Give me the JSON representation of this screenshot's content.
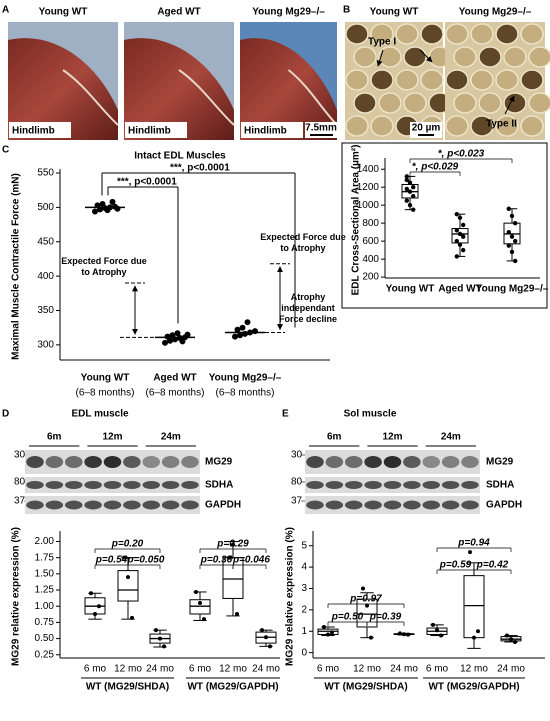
{
  "figure": {
    "panel_A": {
      "letter": "A",
      "photos": [
        {
          "title": "Young WT",
          "caption": "Hindlimb"
        },
        {
          "title": "Aged WT",
          "caption": "Hindlimb"
        },
        {
          "title": "Young Mg29–/–",
          "caption": "Hindlimb"
        }
      ],
      "scale_bar": "7.5mm"
    },
    "panel_B": {
      "letter": "B",
      "micrographs": [
        {
          "title": "Young WT",
          "label": "Type I"
        },
        {
          "title": "Young Mg29–/–",
          "label": "Type II"
        }
      ],
      "scale_bar": "20 µm"
    },
    "panel_C": {
      "letter": "C"
    },
    "panel_D": {
      "letter": "D",
      "title": "EDL muscle",
      "timepoints": [
        "6m",
        "12m",
        "24m"
      ],
      "blots": [
        {
          "marker": "30",
          "name": "MG29"
        },
        {
          "marker": "80",
          "name": "SDHA"
        },
        {
          "marker": "37",
          "name": "GAPDH"
        }
      ]
    },
    "panel_E": {
      "letter": "E",
      "title": "Sol muscle",
      "timepoints": [
        "6m",
        "12m",
        "24m"
      ],
      "blots": [
        {
          "marker": "30",
          "name": "MG29"
        },
        {
          "marker": "80",
          "name": "SDHA"
        },
        {
          "marker": "37",
          "name": "GAPDH"
        }
      ]
    }
  },
  "chart_data": [
    {
      "type": "dot",
      "title": "Intact EDL Muscles",
      "y_label": "Maximal Muscle Contractile Force (mN)",
      "categories": [
        "Young WT",
        "Aged WT",
        "Young Mg29–/–"
      ],
      "category_notes": [
        "(6–8 months)",
        "(6–8 months)",
        "(6–8 months)"
      ],
      "values": [
        [
          494,
          497,
          499,
          500,
          501,
          503,
          505,
          496,
          508,
          498
        ],
        [
          303,
          306,
          308,
          310,
          311,
          312,
          314,
          317,
          305,
          315
        ],
        [
          312,
          314,
          316,
          318,
          320,
          322,
          325,
          333
        ]
      ],
      "means": [
        500,
        311,
        318
      ],
      "reference_lines": [
        390,
        418
      ],
      "annotations": [
        "***, p<0.0001",
        "***, p<0.0001",
        "Expected Force due to Atrophy",
        "Expected Force due to Atrophy",
        "Atrophy independant Force decline"
      ],
      "ylim": [
        278,
        550
      ],
      "yticks": [
        300,
        350,
        400,
        450,
        500,
        550
      ],
      "color": "#000000"
    },
    {
      "type": "box",
      "y_label": "EDL Cross-Sectional Area (µm²)",
      "categories": [
        "Young WT",
        "Aged WT",
        "Young Mg29–/–"
      ],
      "boxes": [
        {
          "whisker_low": 950,
          "q1": 1080,
          "median": 1150,
          "q3": 1230,
          "whisker_high": 1320,
          "points": [
            1320,
            1250,
            1200,
            1180,
            1150,
            1100,
            1050,
            1000,
            950,
            1280
          ]
        },
        {
          "whisker_low": 430,
          "q1": 580,
          "median": 680,
          "q3": 740,
          "whisker_high": 900,
          "points": [
            900,
            860,
            780,
            720,
            680,
            650,
            600,
            560,
            500,
            430
          ]
        },
        {
          "whisker_low": 380,
          "q1": 570,
          "median": 680,
          "q3": 800,
          "whisker_high": 960,
          "points": [
            960,
            880,
            800,
            700,
            650,
            600,
            550,
            480,
            380
          ]
        }
      ],
      "annotations": [
        "*, p<0.029",
        "*, p<0.023"
      ],
      "ylim": [
        190,
        1480
      ],
      "yticks": [
        200,
        400,
        600,
        800,
        1000,
        1200,
        1400
      ],
      "color": "#000000"
    },
    {
      "type": "box",
      "y_label": "MG29 relative expression (%)",
      "categories": [
        "6 mo",
        "12 mo",
        "24 mo",
        "6 mo",
        "12 mo",
        "24 mo"
      ],
      "groups": [
        "WT (MG29/SHDA)",
        "WT (MG29/GAPDH)"
      ],
      "boxes": [
        {
          "whisker_low": 0.8,
          "q1": 0.88,
          "median": 1.0,
          "q3": 1.13,
          "whisker_high": 1.2,
          "points": [
            1.2,
            0.88,
            1.0
          ]
        },
        {
          "whisker_low": 0.8,
          "q1": 1.08,
          "median": 1.25,
          "q3": 1.55,
          "whisker_high": 1.75,
          "points": [
            1.75,
            1.45,
            0.82
          ]
        },
        {
          "whisker_low": 0.37,
          "q1": 0.43,
          "median": 0.5,
          "q3": 0.57,
          "whisker_high": 0.63,
          "points": [
            0.63,
            0.5,
            0.38
          ]
        },
        {
          "whisker_low": 0.78,
          "q1": 0.88,
          "median": 1.0,
          "q3": 1.1,
          "whisker_high": 1.22,
          "points": [
            1.22,
            1.05,
            0.8
          ]
        },
        {
          "whisker_low": 0.85,
          "q1": 1.12,
          "median": 1.42,
          "q3": 1.75,
          "whisker_high": 2.0,
          "points": [
            1.75,
            1.95,
            0.88
          ]
        },
        {
          "whisker_low": 0.38,
          "q1": 0.43,
          "median": 0.52,
          "q3": 0.6,
          "whisker_high": 0.63,
          "points": [
            0.63,
            0.52,
            0.38
          ]
        }
      ],
      "annotations": [
        "p=0.20",
        "p=0.54",
        "*p=0.050",
        "p=0.29",
        "p=0.36",
        "*p=0.046"
      ],
      "ylim": [
        0.2,
        2.1
      ],
      "yticks": [
        0.25,
        {
          "value": 0.5,
          "label": "0.50"
        },
        0.75,
        {
          "value": 1,
          "label": "1.00"
        },
        1.25,
        {
          "value": 1.5,
          "label": "1.50"
        },
        1.75,
        {
          "value": 2,
          "label": "2.00"
        }
      ],
      "color": "#000000"
    },
    {
      "type": "box",
      "y_label": "MG29 relative expression (%)",
      "categories": [
        "6 mo",
        "12 mo",
        "24 mo",
        "6 mo",
        "12 mo",
        "24 mo"
      ],
      "groups": [
        "WT (MG29/SHDA)",
        "WT (MG29/GAPDH)"
      ],
      "boxes": [
        {
          "whisker_low": 0.8,
          "q1": 0.85,
          "median": 1.0,
          "q3": 1.1,
          "whisker_high": 1.2,
          "points": [
            1.2,
            0.85,
            0.95
          ]
        },
        {
          "whisker_low": 0.7,
          "q1": 1.2,
          "median": 1.8,
          "q3": 2.5,
          "whisker_high": 2.8,
          "points": [
            3.0,
            2.2,
            0.7
          ]
        },
        {
          "whisker_low": 0.83,
          "q1": 0.85,
          "median": 0.87,
          "q3": 0.88,
          "whisker_high": 0.9,
          "points": [
            0.9,
            0.86,
            0.84
          ]
        },
        {
          "whisker_low": 0.8,
          "q1": 0.85,
          "median": 1.0,
          "q3": 1.15,
          "whisker_high": 1.3,
          "points": [
            1.3,
            1.05,
            0.8
          ]
        },
        {
          "whisker_low": 0.2,
          "q1": 0.7,
          "median": 2.2,
          "q3": 3.6,
          "whisker_high": 4.2,
          "points": [
            4.7,
            0.7,
            1.0
          ]
        },
        {
          "whisker_low": 0.5,
          "q1": 0.55,
          "median": 0.63,
          "q3": 0.75,
          "whisker_high": 0.8,
          "points": [
            0.8,
            0.63,
            0.5
          ]
        }
      ],
      "annotations": [
        "p=0.97",
        "p=0.50",
        "p=0.39",
        "p=0.94",
        "p=0.59",
        "p=0.42"
      ],
      "ylim": [
        -0.25,
        5.5
      ],
      "yticks": [
        0,
        1,
        2,
        3,
        4,
        5
      ],
      "color": "#000000"
    }
  ]
}
